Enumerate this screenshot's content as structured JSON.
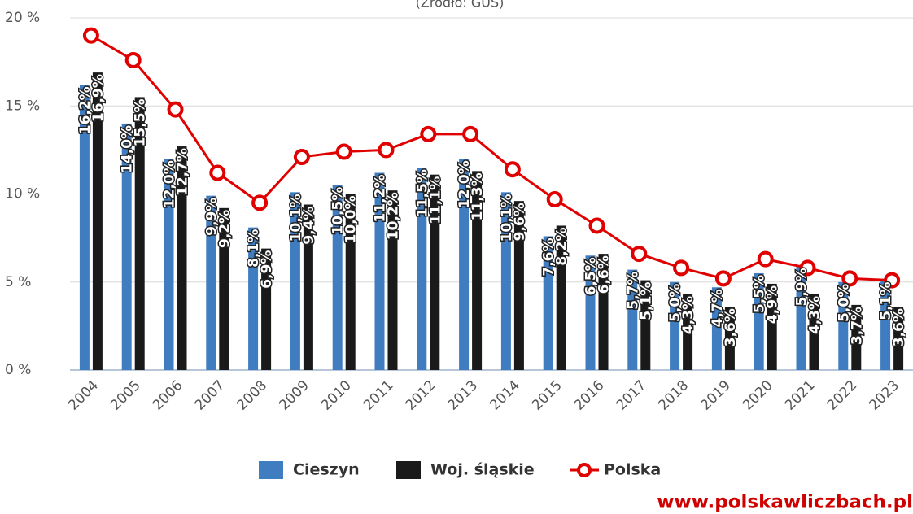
{
  "chart_data": {
    "type": "bar_line",
    "subtitle": "(Źródło: GUS)",
    "categories": [
      "2004",
      "2005",
      "2006",
      "2007",
      "2008",
      "2009",
      "2010",
      "2011",
      "2012",
      "2013",
      "2014",
      "2015",
      "2016",
      "2017",
      "2018",
      "2019",
      "2020",
      "2021",
      "2022",
      "2023"
    ],
    "series": [
      {
        "name": "Cieszyn",
        "type": "bar",
        "color": "#3f7cc0",
        "values": [
          16.2,
          14.0,
          12.0,
          9.9,
          8.1,
          10.1,
          10.5,
          11.2,
          11.5,
          12.0,
          10.1,
          7.6,
          6.5,
          5.7,
          5.0,
          4.7,
          5.5,
          5.9,
          5.0,
          5.1
        ],
        "value_labels": [
          "16,2%",
          "14,0%",
          "12,0%",
          "9,9%",
          "8,1%",
          "10,1%",
          "10,5%",
          "11,2%",
          "11,5%",
          "12,0%",
          "10,1%",
          "7,6%",
          "6,5%",
          "5,7%",
          "5,0%",
          "4,7%",
          "5,5%",
          "5,9%",
          "5,0%",
          "5,1%"
        ]
      },
      {
        "name": "Woj. śląskie",
        "type": "bar",
        "color": "#1a1a1a",
        "values": [
          16.9,
          15.5,
          12.7,
          9.2,
          6.9,
          9.4,
          10.0,
          10.2,
          11.1,
          11.3,
          9.6,
          8.2,
          6.6,
          5.1,
          4.3,
          3.6,
          4.9,
          4.3,
          3.7,
          3.6
        ],
        "value_labels": [
          "16,9%",
          "15,5%",
          "12,7%",
          "9,2%",
          "6,9%",
          "9,4%",
          "10,0%",
          "10,2%",
          "11,1%",
          "11,3%",
          "9,6%",
          "8,2%",
          "6,6%",
          "5,1%",
          "4,3%",
          "3,6%",
          "4,9%",
          "4,3%",
          "3,7%",
          "3,6%"
        ]
      },
      {
        "name": "Polska",
        "type": "line",
        "color": "#e00000",
        "values": [
          19.0,
          17.6,
          14.8,
          11.2,
          9.5,
          12.1,
          12.4,
          12.5,
          13.4,
          13.4,
          11.4,
          9.7,
          8.2,
          6.6,
          5.8,
          5.2,
          6.3,
          5.8,
          5.2,
          5.1
        ]
      }
    ],
    "ylim": [
      0,
      20
    ],
    "yticks": [
      {
        "value": 0,
        "label": "0 %"
      },
      {
        "value": 5,
        "label": "5 %"
      },
      {
        "value": 10,
        "label": "10 %"
      },
      {
        "value": 15,
        "label": "15 %"
      },
      {
        "value": 20,
        "label": "20 %"
      }
    ],
    "grid": true,
    "legend": "bottom",
    "watermark": "www.polskawliczbach.pl"
  }
}
